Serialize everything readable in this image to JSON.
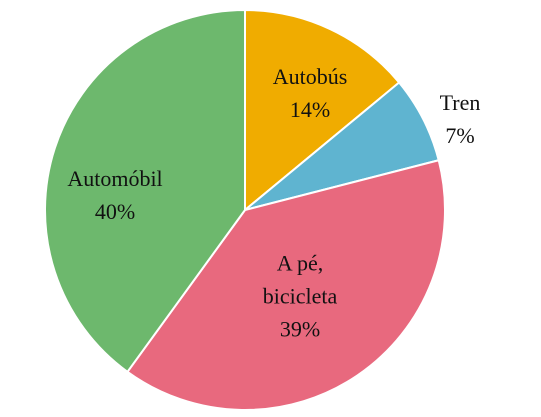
{
  "chart_data": {
    "type": "pie",
    "categories": [
      "Autobús",
      "Tren",
      "A pé, bicicleta",
      "Automóbil"
    ],
    "values": [
      14,
      7,
      39,
      40
    ],
    "value_labels": [
      "14%",
      "7%",
      "39%",
      "40%"
    ],
    "colors": [
      "#f0ac00",
      "#5fb4d0",
      "#e8697e",
      "#6db86d"
    ]
  }
}
